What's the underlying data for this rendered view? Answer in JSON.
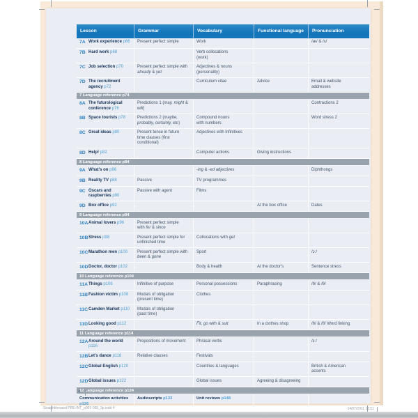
{
  "colors": {
    "header_blue": "#1577bb",
    "section_gray": "#99a3ae",
    "page_bg": "#eaeef4",
    "bleed_cream": "#f9e9d9",
    "code_blue": "#2e82c3",
    "pageref_blue": "#4f9dd2",
    "title_navy": "#17345a",
    "body_text": "#42536a"
  },
  "page": {
    "page_number": "4"
  },
  "print_footer": {
    "left": "Straightforward PRE-INT_p001-055_3p.indd   4",
    "right": "14/07/2011   18:51"
  },
  "table": {
    "headers": [
      "Lesson",
      "Grammar",
      "Vocabulary",
      "Functional language",
      "Pronunciation"
    ],
    "rows": [
      {
        "type": "lesson",
        "code": "7A",
        "title": "Work experience",
        "page": "p66",
        "grammar": "Present perfect simple",
        "vocabulary": "Work",
        "functional": "",
        "pronunciation": "/æ/ & /ʌ/"
      },
      {
        "type": "lesson",
        "code": "7B",
        "title": "Hard work",
        "page": "p68",
        "grammar": "",
        "vocabulary": "Verb collocations\n(work)",
        "functional": "",
        "pronunciation": ""
      },
      {
        "type": "lesson",
        "code": "7C",
        "title": "Job selection",
        "page": "p70",
        "grammar": "Present perfect simple with\n*already* & *yet*",
        "vocabulary": "Adjectives & nouns\n(personality)",
        "functional": "",
        "pronunciation": ""
      },
      {
        "type": "lesson",
        "code": "7D",
        "title": "The recruitment agency",
        "page": "p72",
        "grammar": "",
        "vocabulary": "Curriculum vitae",
        "functional": "Advice",
        "pronunciation": "Email & website\naddresses"
      },
      {
        "type": "section",
        "label": "7 Language reference p74"
      },
      {
        "type": "lesson",
        "code": "8A",
        "title": "The futurological conference",
        "page": "p76",
        "grammar": "Predictions 1 (*may, might* & *will*)",
        "vocabulary": "",
        "functional": "",
        "pronunciation": "Contractions 2"
      },
      {
        "type": "lesson",
        "code": "8B",
        "title": "Space tourists",
        "page": "p78",
        "grammar": "Predictions 2 (*maybe,\nprobably, certainly, etc*)",
        "vocabulary": "Compound nouns\nwith numbers",
        "functional": "",
        "pronunciation": "Word stress 2"
      },
      {
        "type": "lesson",
        "code": "8C",
        "title": "Great ideas",
        "page": "p80",
        "grammar": "Present tense in future\ntime clauses (first conditional)",
        "vocabulary": "Adjectives with infinitives",
        "functional": "",
        "pronunciation": ""
      },
      {
        "type": "lesson",
        "code": "8D",
        "title": "Help!",
        "page": "p82",
        "grammar": "",
        "vocabulary": "Computer actions",
        "functional": "Giving instructions",
        "pronunciation": ""
      },
      {
        "type": "section",
        "label": "8 Language reference p84"
      },
      {
        "type": "lesson",
        "code": "9A",
        "title": "What's on",
        "page": "p86",
        "grammar": "",
        "vocabulary": "*-ing* & *-ed* adjectives",
        "functional": "",
        "pronunciation": "Diphthongs"
      },
      {
        "type": "lesson",
        "code": "9B",
        "title": "Reality TV",
        "page": "p88",
        "grammar": "Passive",
        "vocabulary": "TV programmes",
        "functional": "",
        "pronunciation": ""
      },
      {
        "type": "lesson",
        "code": "9C",
        "title": "Oscars and raspberries",
        "page": "p90",
        "grammar": "Passive with agent",
        "vocabulary": "Films",
        "functional": "",
        "pronunciation": ""
      },
      {
        "type": "lesson",
        "code": "9D",
        "title": "Box office",
        "page": "p92",
        "grammar": "",
        "vocabulary": "",
        "functional": "At the box office",
        "pronunciation": "Dates"
      },
      {
        "type": "section",
        "label": "9 Language reference p94"
      },
      {
        "type": "lesson",
        "code": "10A",
        "title": "Animal lovers",
        "page": "p96",
        "grammar": "Present perfect simple\nwith *for* & *since*",
        "vocabulary": "",
        "functional": "",
        "pronunciation": ""
      },
      {
        "type": "lesson",
        "code": "10B",
        "title": "Stress",
        "page": "p98",
        "grammar": "Present perfect simple for\nunfinished time",
        "vocabulary": "Collocations with *get*",
        "functional": "",
        "pronunciation": ""
      },
      {
        "type": "lesson",
        "code": "10C",
        "title": "Marathon men",
        "page": "p100",
        "grammar": "Present perfect simple with\n*been* & *gone*",
        "vocabulary": "Sport",
        "functional": "",
        "pronunciation": "/ɔː/"
      },
      {
        "type": "lesson",
        "code": "10D",
        "title": "Doctor, doctor",
        "page": "p102",
        "grammar": "",
        "vocabulary": "Body & health",
        "functional": "At the doctor's",
        "pronunciation": "Sentence stress"
      },
      {
        "type": "section",
        "label": "10 Language reference p104"
      },
      {
        "type": "lesson",
        "code": "11A",
        "title": "Things",
        "page": "p106",
        "grammar": "Infinitive of purpose",
        "vocabulary": "Personal possessions",
        "functional": "Paraphrasing",
        "pronunciation": "/ð/ & /θ/"
      },
      {
        "type": "lesson",
        "code": "11B",
        "title": "Fashion victim",
        "page": "p108",
        "grammar": "Modals of obligation\n(present time)",
        "vocabulary": "Clothes",
        "functional": "",
        "pronunciation": ""
      },
      {
        "type": "lesson",
        "code": "11C",
        "title": "Camden Market",
        "page": "p110",
        "grammar": "Modals of obligation\n(past time)",
        "vocabulary": "",
        "functional": "",
        "pronunciation": ""
      },
      {
        "type": "lesson",
        "code": "11D",
        "title": "Looking good",
        "page": "p112",
        "grammar": "",
        "vocabulary": "*Fit, go with* & *suit*",
        "functional": "In a clothes shop",
        "pronunciation": "/ð/ & /θ/ Word linking"
      },
      {
        "type": "section",
        "label": "11 Language reference p114"
      },
      {
        "type": "lesson",
        "code": "12A",
        "title": "Around the world",
        "page": "p116",
        "grammar": "Prepositions of movement",
        "vocabulary": "Phrasal verbs",
        "functional": "",
        "pronunciation": "/ɜː/"
      },
      {
        "type": "lesson",
        "code": "12B",
        "title": "Let's dance",
        "page": "p118",
        "grammar": "Relative clauses",
        "vocabulary": "Festivals",
        "functional": "",
        "pronunciation": ""
      },
      {
        "type": "lesson",
        "code": "12C",
        "title": "Global English",
        "page": "p120",
        "grammar": "",
        "vocabulary": "Countries & languages",
        "functional": "",
        "pronunciation": "British & American\naccents"
      },
      {
        "type": "lesson",
        "code": "12D",
        "title": "Global issues",
        "page": "p122",
        "grammar": "",
        "vocabulary": "Global issues",
        "functional": "Agreeing & disagreeing",
        "pronunciation": ""
      },
      {
        "type": "section",
        "label": "12 Language reference p124"
      },
      {
        "type": "endmatter",
        "cells": [
          {
            "label": "Communication activities",
            "page": "p126"
          },
          {
            "label": "Audioscripts",
            "page": "p133"
          },
          {
            "label": "Unit reviews",
            "page": "p148"
          },
          {
            "label": "",
            "page": ""
          },
          {
            "label": "",
            "page": ""
          }
        ]
      }
    ]
  }
}
